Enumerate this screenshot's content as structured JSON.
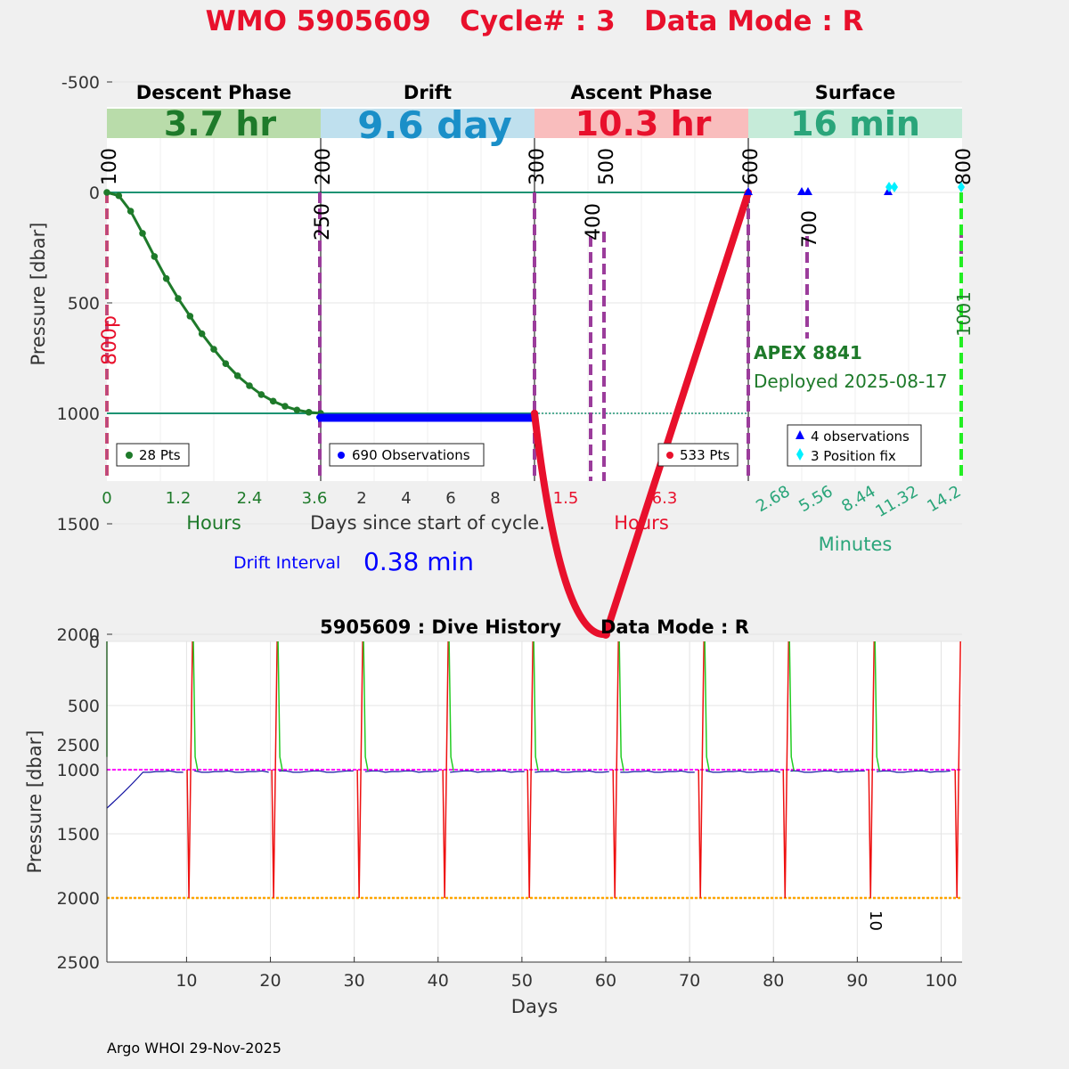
{
  "title": "WMO 5905609   Cycle# : 3   Data Mode : R",
  "colors": {
    "title": "#e8102c",
    "descent": "#1e7a2a",
    "descent_band": "#b9dcaa",
    "drift": "#0000ff",
    "drift_label": "#1a8fc8",
    "drift_band": "#bfe0ee",
    "ascent": "#e8102c",
    "ascent_band": "#f9bdbd",
    "surface": "#2aa57a",
    "surface_band": "#c6ebd9",
    "marker_purple": "#9b3c9b",
    "cyan": "#00f0ff",
    "lime": "#22ee22",
    "ref_line": "#1d9373",
    "history_descent": "#22cc22",
    "history_drift": "#1010a0",
    "history_ascent": "#ee1010",
    "history_park": "#ff00ff",
    "history_profile": "#ffa500"
  },
  "top_panel": {
    "ylabel": "Pressure [dbar]",
    "yticks": [
      -500,
      0,
      500,
      1000,
      1500,
      2000,
      2500
    ],
    "ylim": [
      -750,
      2600
    ],
    "phases": [
      {
        "name": "Descent Phase",
        "duration": "3.7 hr"
      },
      {
        "name": "Drift",
        "duration": "9.6 day"
      },
      {
        "name": "Ascent Phase",
        "duration": "10.3 hr"
      },
      {
        "name": "Surface",
        "duration": "16 min"
      }
    ],
    "descent": {
      "legend": "28 Pts",
      "xticks": [
        "0",
        "1.2",
        "2.4",
        "3.6"
      ],
      "xlabel": "Hours",
      "pressures": [
        0,
        15,
        85,
        185,
        290,
        390,
        480,
        560,
        640,
        710,
        775,
        830,
        875,
        915,
        945,
        968,
        985,
        995,
        1000
      ]
    },
    "drift": {
      "legend": "690 Observations",
      "xticks": [
        "2",
        "4",
        "6",
        "8"
      ],
      "xlabel": "Days since start of cycle.",
      "pressure": 1020
    },
    "ascent": {
      "legend": "533 Pts",
      "xticks": [
        "1.5",
        "6.3"
      ],
      "xlabel": "Hours",
      "start_pressure": 1000,
      "max_pressure": 2000,
      "end_pressure": 0
    },
    "surface": {
      "legend_observations": "4 observations",
      "legend_position": "3 Position fix",
      "xticks": [
        "2.68",
        "5.56",
        "8.44",
        "11.32",
        "14.2"
      ],
      "xlabel": "Minutes",
      "float_model": "APEX 8841",
      "deployed": "Deployed 2025-08-17"
    },
    "event_labels": {
      "e100": "100",
      "e200": "200",
      "e250": "250",
      "e300": "300",
      "e400": "400",
      "e500": "500",
      "e600": "600",
      "e700": "700",
      "e800": "800",
      "e800p": "800p",
      "e1001": "1001"
    },
    "drift_interval_label": "Drift Interval",
    "drift_interval_value": "0.38 min"
  },
  "chart_data": {
    "type": "line",
    "title": "5905609 : Dive History      Data Mode : R",
    "xlabel": "Days",
    "ylabel": "Pressure [dbar]",
    "xlim": [
      0.5,
      102.5
    ],
    "ylim": [
      0,
      2500
    ],
    "xticks": [
      10,
      20,
      30,
      40,
      50,
      60,
      70,
      80,
      90,
      100
    ],
    "yticks": [
      0,
      500,
      1000,
      1500,
      2000,
      2500
    ],
    "park_pressure": 1000,
    "profile_pressure": 2000,
    "cycle_days": [
      10.6,
      20.7,
      30.9,
      41.1,
      51.2,
      61.4,
      71.6,
      81.7,
      91.9,
      102.2
    ],
    "annotation": "10"
  },
  "footer": "Argo WHOI 29-Nov-2025"
}
